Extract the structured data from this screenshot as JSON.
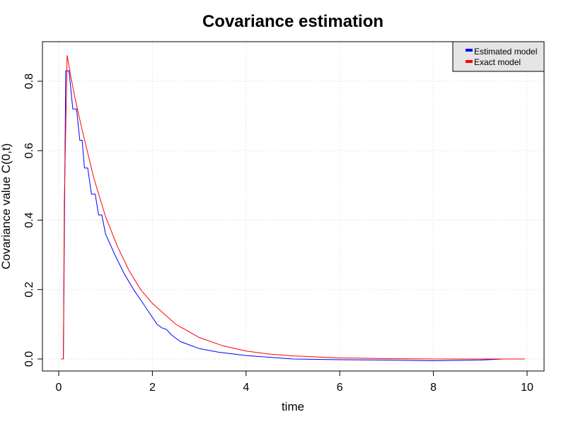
{
  "chart_data": {
    "type": "line",
    "title": "Covariance estimation",
    "xlabel": "time",
    "ylabel": "Covariance value C(0,t)",
    "xlim": [
      0,
      10
    ],
    "ylim": [
      0,
      0.9
    ],
    "xticks": [
      0,
      2,
      4,
      6,
      8,
      10
    ],
    "yticks": [
      0.0,
      0.2,
      0.4,
      0.6,
      0.8
    ],
    "xtick_labels": [
      "0",
      "2",
      "4",
      "6",
      "8",
      "10"
    ],
    "ytick_labels": [
      "0.0",
      "0.2",
      "0.4",
      "0.6",
      "0.8"
    ],
    "grid": true,
    "legend_position": "top-right",
    "series": [
      {
        "name": "Estimated model",
        "color": "#0000ff",
        "points": [
          [
            0.05,
            0.0
          ],
          [
            0.1,
            0.0
          ],
          [
            0.12,
            0.35
          ],
          [
            0.15,
            0.83
          ],
          [
            0.22,
            0.83
          ],
          [
            0.3,
            0.72
          ],
          [
            0.38,
            0.72
          ],
          [
            0.45,
            0.63
          ],
          [
            0.5,
            0.63
          ],
          [
            0.55,
            0.55
          ],
          [
            0.62,
            0.55
          ],
          [
            0.7,
            0.475
          ],
          [
            0.78,
            0.475
          ],
          [
            0.85,
            0.415
          ],
          [
            0.92,
            0.415
          ],
          [
            1.0,
            0.36
          ],
          [
            1.2,
            0.3
          ],
          [
            1.4,
            0.245
          ],
          [
            1.6,
            0.2
          ],
          [
            1.8,
            0.16
          ],
          [
            2.0,
            0.12
          ],
          [
            2.1,
            0.1
          ],
          [
            2.2,
            0.09
          ],
          [
            2.3,
            0.085
          ],
          [
            2.4,
            0.07
          ],
          [
            2.5,
            0.06
          ],
          [
            2.6,
            0.05
          ],
          [
            2.8,
            0.04
          ],
          [
            3.0,
            0.03
          ],
          [
            3.4,
            0.02
          ],
          [
            4.0,
            0.01
          ],
          [
            5.0,
            0.0
          ],
          [
            6.0,
            -0.002
          ],
          [
            7.0,
            -0.003
          ],
          [
            8.0,
            -0.005
          ],
          [
            9.0,
            -0.003
          ],
          [
            9.5,
            0.0
          ],
          [
            9.95,
            0.0
          ]
        ]
      },
      {
        "name": "Exact model",
        "color": "#ff0000",
        "points": [
          [
            0.05,
            0.0
          ],
          [
            0.1,
            0.0
          ],
          [
            0.12,
            0.45
          ],
          [
            0.18,
            0.875
          ],
          [
            0.25,
            0.82
          ],
          [
            0.35,
            0.75
          ],
          [
            0.5,
            0.66
          ],
          [
            0.75,
            0.52
          ],
          [
            1.0,
            0.41
          ],
          [
            1.25,
            0.325
          ],
          [
            1.5,
            0.255
          ],
          [
            1.75,
            0.2
          ],
          [
            2.0,
            0.16
          ],
          [
            2.5,
            0.1
          ],
          [
            3.0,
            0.062
          ],
          [
            3.5,
            0.038
          ],
          [
            4.0,
            0.023
          ],
          [
            4.5,
            0.014
          ],
          [
            5.0,
            0.009
          ],
          [
            6.0,
            0.003
          ],
          [
            7.0,
            0.001
          ],
          [
            8.0,
            0.0
          ],
          [
            9.0,
            0.0
          ],
          [
            9.95,
            0.0
          ]
        ]
      }
    ]
  }
}
